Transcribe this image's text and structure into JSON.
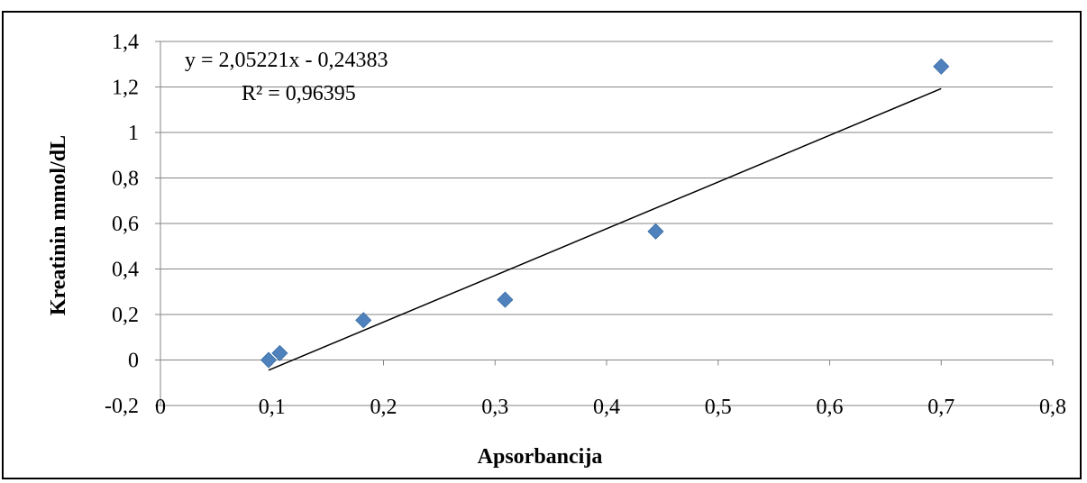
{
  "chart_data": {
    "type": "scatter",
    "xlabel": "Apsorbancija",
    "ylabel": "Kreatinin mmol/dL",
    "xlim": [
      0,
      0.8
    ],
    "ylim": [
      -0.2,
      1.4
    ],
    "x_ticks": [
      "0",
      "0,1",
      "0,2",
      "0,3",
      "0,4",
      "0,5",
      "0,6",
      "0,7",
      "0,8"
    ],
    "y_ticks": [
      "-0,2",
      "0",
      "0,2",
      "0,4",
      "0,6",
      "0,8",
      "1",
      "1,2",
      "1,4"
    ],
    "grid": "horizontal",
    "series": [
      {
        "marker": "diamond",
        "color": "#4F81BD",
        "points": [
          {
            "x": 0.097,
            "y": 0.0
          },
          {
            "x": 0.107,
            "y": 0.03
          },
          {
            "x": 0.182,
            "y": 0.175
          },
          {
            "x": 0.309,
            "y": 0.265
          },
          {
            "x": 0.444,
            "y": 0.565
          },
          {
            "x": 0.7,
            "y": 1.29
          }
        ]
      }
    ],
    "trendline": {
      "type": "linear",
      "slope": 2.05221,
      "intercept": -0.24383,
      "x_range": [
        0.097,
        0.7
      ],
      "color": "#000000"
    },
    "annotations": {
      "equation": "y = 2,05221x - 0,24383",
      "r_squared": "R² = 0,96395"
    }
  }
}
